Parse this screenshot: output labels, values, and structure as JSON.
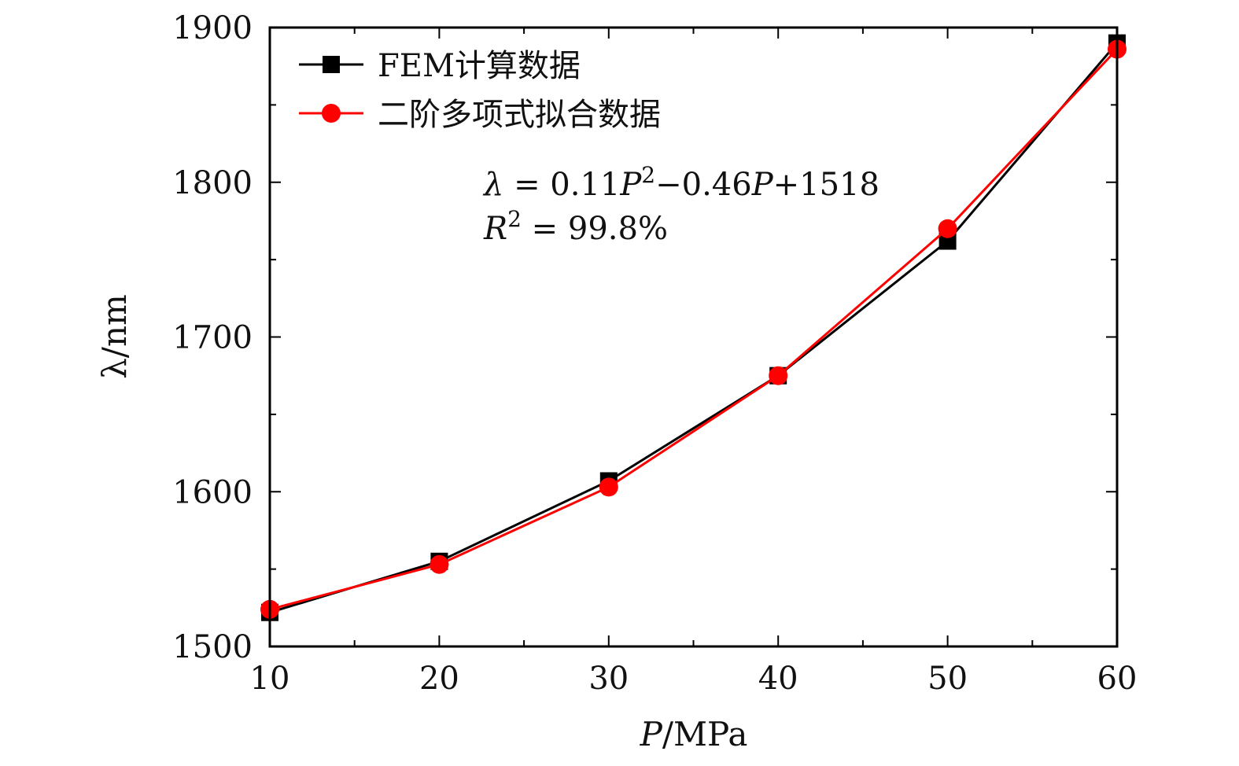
{
  "chart_data": {
    "type": "line",
    "title": "",
    "xlabel_var": "P",
    "xlabel_unit": "/MPa",
    "ylabel_var": "λ",
    "ylabel_unit": "/nm",
    "xlim": [
      10,
      60
    ],
    "ylim": [
      1500,
      1900
    ],
    "xticks": [
      10,
      20,
      30,
      40,
      50,
      60
    ],
    "yticks": [
      1500,
      1600,
      1700,
      1800,
      1900
    ],
    "x_minor_step": 5,
    "y_minor_step": 50,
    "grid": false,
    "legend_position": "top-left",
    "x": [
      10,
      20,
      30,
      40,
      50,
      60
    ],
    "series": [
      {
        "name": "FEM计算数据",
        "marker": "square",
        "color": "#000000",
        "values": [
          1522,
          1555,
          1607,
          1675,
          1762,
          1890
        ]
      },
      {
        "name": "二阶多项式拟合数据",
        "marker": "circle",
        "color": "#ff0000",
        "values": [
          1524,
          1553,
          1603,
          1675,
          1770,
          1886
        ]
      }
    ],
    "annotations": {
      "equation": {
        "lambda": "λ",
        "eq1": " = 0.11",
        "p1": "P",
        "sup": "2",
        "mid": "−0.46",
        "p2": "P",
        "tail": "+1518"
      },
      "r2": {
        "r": "R",
        "sup": "2",
        "value": " = 99.8%"
      }
    }
  }
}
